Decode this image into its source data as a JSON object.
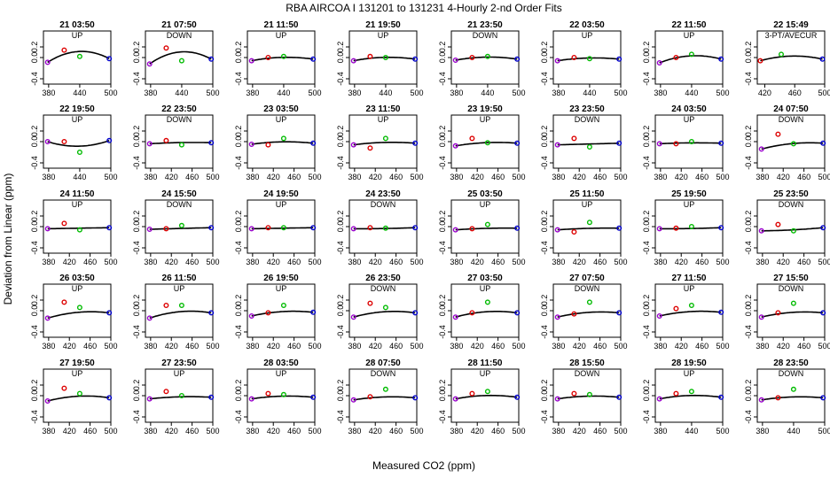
{
  "chart_data": {
    "type": "scatter",
    "title": "RBA   AIRCOA I   131201 to 131231   4-Hourly 2-nd Order Fits",
    "xlabel": "Measured CO2 (ppm)",
    "ylabel": "Deviation from Linear (ppm)",
    "ylim": [
      -0.5,
      0.5
    ],
    "yticks": [
      -0.4,
      0,
      0.2
    ],
    "point_colors": [
      "#9900cc",
      "#dd0000",
      "#00bb00",
      "#0000cc"
    ],
    "curve_color": "#000000",
    "panels": [
      {
        "title": "21 03:50",
        "label": "UP",
        "xlim": [
          370,
          500
        ],
        "xticks": [
          380,
          440,
          500
        ],
        "x": [
          378,
          410,
          440,
          497
        ],
        "y": [
          -0.09,
          0.14,
          0.02,
          -0.02
        ],
        "fit": [
          -0.09,
          0.28,
          0.0009
        ]
      },
      {
        "title": "21 07:50",
        "label": "DOWN",
        "xlim": [
          370,
          500
        ],
        "xticks": [
          380,
          440,
          500
        ],
        "x": [
          378,
          410,
          440,
          497
        ],
        "y": [
          -0.12,
          0.18,
          -0.06,
          -0.03
        ],
        "fit": [
          -0.1,
          0.3,
          0.001
        ]
      },
      {
        "title": "21 11:50",
        "label": "UP",
        "xlim": [
          370,
          500
        ],
        "xticks": [
          380,
          440,
          500
        ],
        "x": [
          378,
          410,
          440,
          497
        ],
        "y": [
          -0.06,
          0.0,
          0.02,
          -0.03
        ],
        "fit": [
          -0.06,
          0.08,
          0.0002
        ]
      },
      {
        "title": "21 19:50",
        "label": "UP",
        "xlim": [
          370,
          500
        ],
        "xticks": [
          380,
          440,
          500
        ],
        "x": [
          378,
          410,
          440,
          497
        ],
        "y": [
          -0.06,
          0.02,
          0.0,
          -0.03
        ],
        "fit": [
          -0.06,
          0.08,
          0.0002
        ]
      },
      {
        "title": "21 23:50",
        "label": "DOWN",
        "xlim": [
          370,
          500
        ],
        "xticks": [
          380,
          440,
          500
        ],
        "x": [
          378,
          410,
          440,
          497
        ],
        "y": [
          -0.05,
          0.0,
          0.02,
          -0.03
        ],
        "fit": [
          -0.05,
          0.08,
          0.0002
        ]
      },
      {
        "title": "22 03:50",
        "label": "UP",
        "xlim": [
          370,
          500
        ],
        "xticks": [
          380,
          440,
          500
        ],
        "x": [
          378,
          410,
          440,
          497
        ],
        "y": [
          -0.06,
          0.0,
          -0.02,
          -0.03
        ],
        "fit": [
          -0.06,
          0.06,
          0.0002
        ]
      },
      {
        "title": "22 11:50",
        "label": "UP",
        "xlim": [
          370,
          500
        ],
        "xticks": [
          380,
          440,
          500
        ],
        "x": [
          378,
          410,
          440,
          497
        ],
        "y": [
          -0.1,
          0.0,
          0.06,
          -0.03
        ],
        "fit": [
          -0.1,
          0.16,
          0.0008
        ]
      },
      {
        "title": "22 15:49",
        "label": "3-PT/AVECUR",
        "xlim": [
          410,
          500
        ],
        "xticks": [
          420,
          460,
          500
        ],
        "x": [
          414,
          442,
          497
        ],
        "y": [
          -0.06,
          0.06,
          -0.03
        ],
        "fit": [
          -0.06,
          0.12,
          0.0003
        ]
      },
      {
        "title": "22 19:50",
        "label": "UP",
        "xlim": [
          370,
          500
        ],
        "xticks": [
          380,
          440,
          500
        ],
        "x": [
          378,
          410,
          440,
          497
        ],
        "y": [
          0.0,
          0.0,
          -0.2,
          0.02
        ],
        "fit": [
          -0.05,
          -0.16,
          0.0002
        ]
      },
      {
        "title": "22 23:50",
        "label": "DOWN",
        "xlim": [
          370,
          500
        ],
        "xticks": [
          380,
          420,
          460,
          500
        ],
        "x": [
          378,
          410,
          440,
          497
        ],
        "y": [
          -0.04,
          0.02,
          -0.06,
          -0.02
        ],
        "fit": [
          -0.04,
          0.02,
          -0.02
        ]
      },
      {
        "title": "23 03:50",
        "label": "UP",
        "xlim": [
          370,
          500
        ],
        "xticks": [
          380,
          420,
          460,
          500
        ],
        "x": [
          378,
          410,
          440,
          497
        ],
        "y": [
          -0.05,
          -0.06,
          0.06,
          -0.03
        ],
        "fit": [
          -0.05,
          0.06,
          0.0002
        ]
      },
      {
        "title": "23 11:50",
        "label": "UP",
        "xlim": [
          370,
          500
        ],
        "xticks": [
          380,
          420,
          460,
          500
        ],
        "x": [
          378,
          410,
          440,
          497
        ],
        "y": [
          -0.06,
          -0.12,
          0.06,
          -0.03
        ],
        "fit": [
          -0.06,
          0.05,
          0.0002
        ]
      },
      {
        "title": "23 19:50",
        "label": "UP",
        "xlim": [
          370,
          500
        ],
        "xticks": [
          380,
          420,
          460,
          500
        ],
        "x": [
          378,
          410,
          440,
          497
        ],
        "y": [
          -0.08,
          0.06,
          -0.02,
          -0.03
        ],
        "fit": [
          -0.08,
          0.06,
          0.0002
        ]
      },
      {
        "title": "23 23:50",
        "label": "DOWN",
        "xlim": [
          370,
          500
        ],
        "xticks": [
          380,
          420,
          460,
          500
        ],
        "x": [
          378,
          410,
          440,
          497
        ],
        "y": [
          -0.06,
          0.06,
          -0.1,
          -0.03
        ],
        "fit": [
          -0.06,
          0.0,
          0.0002
        ]
      },
      {
        "title": "24 03:50",
        "label": "UP",
        "xlim": [
          370,
          500
        ],
        "xticks": [
          380,
          420,
          460,
          500
        ],
        "x": [
          378,
          410,
          440,
          497
        ],
        "y": [
          -0.04,
          -0.04,
          0.0,
          -0.03
        ],
        "fit": [
          -0.04,
          0.02,
          0.0002
        ]
      },
      {
        "title": "24 07:50",
        "label": "DOWN",
        "xlim": [
          370,
          500
        ],
        "xticks": [
          380,
          420,
          460,
          500
        ],
        "x": [
          378,
          410,
          440,
          497
        ],
        "y": [
          -0.14,
          0.14,
          -0.04,
          -0.03
        ],
        "fit": [
          -0.14,
          0.08,
          0.0008
        ]
      },
      {
        "title": "24 11:50",
        "label": "UP",
        "xlim": [
          370,
          500
        ],
        "xticks": [
          380,
          420,
          460,
          500
        ],
        "x": [
          378,
          410,
          440,
          497
        ],
        "y": [
          -0.04,
          0.06,
          -0.06,
          -0.02
        ],
        "fit": [
          -0.04,
          0.0,
          0.0002
        ]
      },
      {
        "title": "24 15:50",
        "label": "DOWN",
        "xlim": [
          370,
          500
        ],
        "xticks": [
          380,
          420,
          460,
          500
        ],
        "x": [
          378,
          410,
          440,
          497
        ],
        "y": [
          -0.05,
          -0.04,
          0.02,
          -0.02
        ],
        "fit": [
          -0.05,
          0.0,
          0.0002
        ]
      },
      {
        "title": "24 19:50",
        "label": "UP",
        "xlim": [
          370,
          500
        ],
        "xticks": [
          380,
          420,
          460,
          500
        ],
        "x": [
          378,
          410,
          440,
          497
        ],
        "y": [
          -0.04,
          -0.02,
          -0.02,
          -0.02
        ],
        "fit": [
          -0.04,
          0.0,
          -0.02
        ]
      },
      {
        "title": "24 23:50",
        "label": "DOWN",
        "xlim": [
          370,
          500
        ],
        "xticks": [
          380,
          420,
          460,
          500
        ],
        "x": [
          378,
          410,
          440,
          497
        ],
        "y": [
          -0.04,
          -0.02,
          -0.03,
          -0.02
        ],
        "fit": [
          -0.04,
          -0.01,
          -0.02
        ]
      },
      {
        "title": "25 03:50",
        "label": "UP",
        "xlim": [
          370,
          500
        ],
        "xticks": [
          380,
          420,
          460,
          500
        ],
        "x": [
          378,
          410,
          440,
          497
        ],
        "y": [
          -0.06,
          -0.04,
          0.04,
          -0.03
        ],
        "fit": [
          -0.06,
          0.02,
          0.0002
        ]
      },
      {
        "title": "25 11:50",
        "label": "UP",
        "xlim": [
          370,
          500
        ],
        "xticks": [
          380,
          420,
          460,
          500
        ],
        "x": [
          378,
          410,
          440,
          497
        ],
        "y": [
          -0.06,
          -0.1,
          0.08,
          -0.03
        ],
        "fit": [
          -0.06,
          0.02,
          0.0002
        ]
      },
      {
        "title": "25 19:50",
        "label": "UP",
        "xlim": [
          370,
          500
        ],
        "xticks": [
          380,
          420,
          460,
          500
        ],
        "x": [
          378,
          410,
          440,
          497
        ],
        "y": [
          -0.04,
          -0.03,
          0.0,
          -0.02
        ],
        "fit": [
          -0.04,
          -0.01,
          -0.02
        ]
      },
      {
        "title": "25 23:50",
        "label": "DOWN",
        "xlim": [
          370,
          500
        ],
        "xticks": [
          380,
          420,
          460,
          500
        ],
        "x": [
          378,
          410,
          440,
          497
        ],
        "y": [
          -0.08,
          0.04,
          -0.08,
          -0.02
        ],
        "fit": [
          -0.04,
          -0.02,
          -0.02
        ]
      },
      {
        "title": "26 03:50",
        "label": "UP",
        "xlim": [
          370,
          500
        ],
        "xticks": [
          380,
          420,
          460,
          500
        ],
        "x": [
          378,
          410,
          440,
          497
        ],
        "y": [
          -0.14,
          0.16,
          0.06,
          -0.04
        ],
        "fit": [
          -0.14,
          0.1,
          0.0008
        ]
      },
      {
        "title": "26 11:50",
        "label": "UP",
        "xlim": [
          370,
          500
        ],
        "xticks": [
          380,
          420,
          460,
          500
        ],
        "x": [
          378,
          410,
          440,
          497
        ],
        "y": [
          -0.14,
          0.1,
          0.1,
          -0.04
        ],
        "fit": [
          -0.14,
          0.12,
          0.0008
        ]
      },
      {
        "title": "26 19:50",
        "label": "UP",
        "xlim": [
          370,
          500
        ],
        "xticks": [
          380,
          420,
          460,
          500
        ],
        "x": [
          378,
          410,
          440,
          497
        ],
        "y": [
          -0.1,
          -0.04,
          0.1,
          -0.03
        ],
        "fit": [
          -0.1,
          0.08,
          0.0004
        ]
      },
      {
        "title": "26 23:50",
        "label": "DOWN",
        "xlim": [
          370,
          500
        ],
        "xticks": [
          380,
          420,
          460,
          500
        ],
        "x": [
          378,
          410,
          440,
          497
        ],
        "y": [
          -0.12,
          0.14,
          0.06,
          -0.04
        ],
        "fit": [
          -0.12,
          0.1,
          0.0006
        ]
      },
      {
        "title": "27 03:50",
        "label": "UP",
        "xlim": [
          370,
          500
        ],
        "xticks": [
          380,
          420,
          460,
          500
        ],
        "x": [
          378,
          410,
          440,
          497
        ],
        "y": [
          -0.12,
          -0.04,
          0.16,
          -0.04
        ],
        "fit": [
          -0.12,
          0.1,
          0.0006
        ]
      },
      {
        "title": "27 07:50",
        "label": "DOWN",
        "xlim": [
          370,
          500
        ],
        "xticks": [
          380,
          420,
          460,
          500
        ],
        "x": [
          378,
          410,
          440,
          497
        ],
        "y": [
          -0.12,
          -0.06,
          0.16,
          -0.04
        ],
        "fit": [
          -0.12,
          0.08,
          0.0006
        ]
      },
      {
        "title": "27 11:50",
        "label": "UP",
        "xlim": [
          370,
          500
        ],
        "xticks": [
          380,
          420,
          460,
          500
        ],
        "x": [
          378,
          410,
          440,
          497
        ],
        "y": [
          -0.1,
          0.04,
          0.1,
          -0.03
        ],
        "fit": [
          -0.1,
          0.08,
          0.0004
        ]
      },
      {
        "title": "27 15:50",
        "label": "DOWN",
        "xlim": [
          370,
          500
        ],
        "xticks": [
          380,
          420,
          460,
          500
        ],
        "x": [
          378,
          410,
          440,
          497
        ],
        "y": [
          -0.12,
          -0.04,
          0.14,
          -0.04
        ],
        "fit": [
          -0.12,
          0.08,
          0.0006
        ]
      },
      {
        "title": "27 19:50",
        "label": "UP",
        "xlim": [
          370,
          500
        ],
        "xticks": [
          380,
          420,
          460,
          500
        ],
        "x": [
          378,
          410,
          440,
          497
        ],
        "y": [
          -0.1,
          0.14,
          0.04,
          -0.04
        ],
        "fit": [
          -0.1,
          0.1,
          0.0004
        ]
      },
      {
        "title": "27 23:50",
        "label": "UP",
        "xlim": [
          370,
          500
        ],
        "xticks": [
          380,
          420,
          460,
          500
        ],
        "x": [
          378,
          410,
          440,
          497
        ],
        "y": [
          -0.06,
          0.08,
          0.0,
          -0.03
        ],
        "fit": [
          -0.06,
          0.04,
          0.0002
        ]
      },
      {
        "title": "28 03:50",
        "label": "UP",
        "xlim": [
          370,
          500
        ],
        "xticks": [
          380,
          420,
          460,
          500
        ],
        "x": [
          378,
          410,
          440,
          497
        ],
        "y": [
          -0.06,
          0.04,
          0.02,
          -0.03
        ],
        "fit": [
          -0.06,
          0.06,
          0.0002
        ]
      },
      {
        "title": "28 07:50",
        "label": "DOWN",
        "xlim": [
          370,
          500
        ],
        "xticks": [
          380,
          420,
          460,
          500
        ],
        "x": [
          378,
          410,
          440,
          497
        ],
        "y": [
          -0.08,
          -0.02,
          0.12,
          -0.04
        ],
        "fit": [
          -0.08,
          0.06,
          0.0004
        ]
      },
      {
        "title": "28 11:50",
        "label": "UP",
        "xlim": [
          370,
          500
        ],
        "xticks": [
          380,
          420,
          460,
          500
        ],
        "x": [
          378,
          410,
          440,
          497
        ],
        "y": [
          -0.06,
          0.04,
          0.08,
          -0.03
        ],
        "fit": [
          -0.06,
          0.08,
          0.0002
        ]
      },
      {
        "title": "28 15:50",
        "label": "DOWN",
        "xlim": [
          370,
          500
        ],
        "xticks": [
          380,
          420,
          460,
          500
        ],
        "x": [
          378,
          410,
          440,
          497
        ],
        "y": [
          -0.06,
          0.04,
          0.02,
          -0.03
        ],
        "fit": [
          -0.06,
          0.06,
          0.0002
        ]
      },
      {
        "title": "28 19:50",
        "label": "UP",
        "xlim": [
          370,
          500
        ],
        "xticks": [
          380,
          440,
          500
        ],
        "x": [
          378,
          410,
          440,
          497
        ],
        "y": [
          -0.06,
          0.04,
          0.08,
          -0.03
        ],
        "fit": [
          -0.06,
          0.08,
          0.0002
        ]
      },
      {
        "title": "28 23:50",
        "label": "DOWN",
        "xlim": [
          370,
          500
        ],
        "xticks": [
          380,
          440,
          500
        ],
        "x": [
          378,
          410,
          440,
          497
        ],
        "y": [
          -0.08,
          -0.04,
          0.12,
          -0.04
        ],
        "fit": [
          -0.08,
          0.06,
          0.0004
        ]
      }
    ]
  }
}
